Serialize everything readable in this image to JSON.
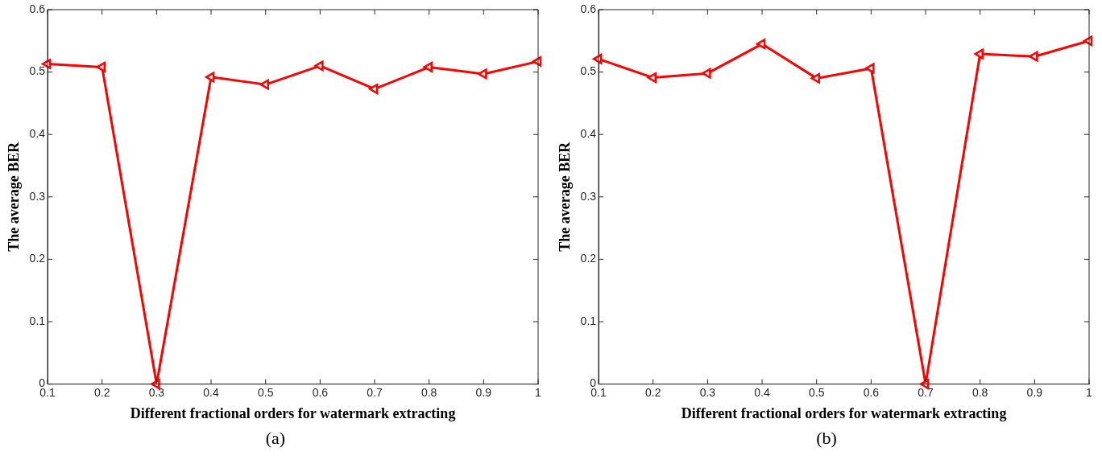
{
  "chart_data": [
    {
      "type": "line",
      "xlabel": "Different fractional orders for watermark extracting",
      "ylabel": "The average BER",
      "annotations": [
        "(a)"
      ],
      "x": [
        0.1,
        0.2,
        0.3,
        0.4,
        0.5,
        0.6,
        0.7,
        0.8,
        0.9,
        1
      ],
      "series": [
        {
          "color": "#ff0000",
          "values": [
            0.513,
            0.508,
            0,
            0.492,
            0.48,
            0.51,
            0.473,
            0.508,
            0.497,
            0.517
          ]
        }
      ],
      "xlim": [
        0.1,
        1
      ],
      "xticks": [
        0.1,
        0.2,
        0.3,
        0.4,
        0.5,
        0.6,
        0.7,
        0.8,
        0.9,
        1
      ],
      "ylim": [
        0,
        0.6
      ],
      "yticks": [
        0,
        0.1,
        0.2,
        0.3,
        0.4,
        0.5,
        0.6
      ],
      "grid": false,
      "legend": false,
      "marker": "triangle",
      "line_style": "solid"
    },
    {
      "type": "line",
      "xlabel": "Different fractional orders for watermark extracting",
      "ylabel": "The average BER",
      "annotations": [
        "(b)"
      ],
      "x": [
        0.1,
        0.2,
        0.3,
        0.4,
        0.5,
        0.6,
        0.7,
        0.8,
        0.9,
        1
      ],
      "series": [
        {
          "color": "#ff0000",
          "values": [
            0.521,
            0.491,
            0.498,
            0.545,
            0.49,
            0.506,
            0,
            0.529,
            0.525,
            0.55
          ]
        }
      ],
      "xlim": [
        0.1,
        1
      ],
      "xticks": [
        0.1,
        0.2,
        0.3,
        0.4,
        0.5,
        0.6,
        0.7,
        0.8,
        0.9,
        1
      ],
      "ylim": [
        0,
        0.6
      ],
      "yticks": [
        0,
        0.1,
        0.2,
        0.3,
        0.4,
        0.5,
        0.6
      ],
      "grid": false,
      "legend": false,
      "marker": "triangle",
      "line_style": "solid"
    }
  ]
}
